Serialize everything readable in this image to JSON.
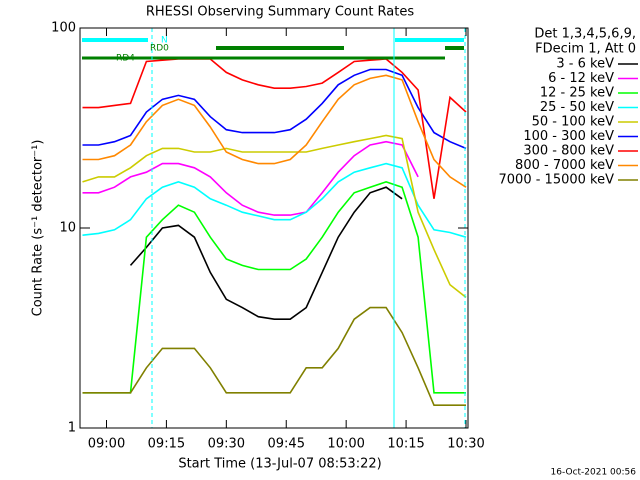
{
  "chart_data": {
    "type": "line",
    "title": "RHESSI Observing Summary Count Rates",
    "xlabel": "Start Time (13-Jul-07 08:53:22)",
    "ylabel": "Count Rate (s⁻¹ detector⁻¹)",
    "footer": "16-Oct-2021 00:56",
    "legend_header": [
      "Det 1,3,4,5,6,9,",
      "FDecim 1, Att 0"
    ],
    "annotations": [
      "N",
      "RD0",
      "RD4"
    ],
    "log_y": true,
    "xlim": [
      533.37,
      630.5
    ],
    "ylim": [
      1,
      100
    ],
    "xticks": [
      {
        "value": 540,
        "label": "09:00"
      },
      {
        "value": 555,
        "label": "09:15"
      },
      {
        "value": 570,
        "label": "09:30"
      },
      {
        "value": 585,
        "label": "09:45"
      },
      {
        "value": 600,
        "label": "10:00"
      },
      {
        "value": 615,
        "label": "10:15"
      },
      {
        "value": 630,
        "label": "10:30"
      }
    ],
    "yticks": [
      1,
      10,
      100
    ],
    "x": [
      534,
      538,
      542,
      546,
      550,
      554,
      558,
      562,
      566,
      570,
      574,
      578,
      582,
      586,
      590,
      594,
      598,
      602,
      606,
      610,
      614,
      618,
      622,
      626,
      630
    ],
    "series": [
      {
        "name": "3 - 6 keV",
        "color": "#000000",
        "values": [
          null,
          null,
          null,
          6.5,
          8,
          10,
          10.3,
          9,
          6,
          4.4,
          4,
          3.6,
          3.5,
          3.5,
          4,
          6,
          9,
          12,
          15,
          16,
          14,
          null,
          null,
          null,
          null
        ]
      },
      {
        "name": "6 - 12 keV",
        "color": "#ff00ff",
        "values": [
          15,
          15,
          16,
          18,
          19,
          21,
          21,
          20,
          18,
          15,
          13,
          12,
          11.6,
          11.6,
          12,
          15,
          19,
          23,
          26,
          27,
          26,
          18,
          null,
          null,
          null
        ]
      },
      {
        "name": "12 - 25 keV",
        "color": "#00ff00",
        "values": [
          1.5,
          1.5,
          1.5,
          1.5,
          9,
          11,
          13,
          12,
          9,
          7,
          6.5,
          6.2,
          6.2,
          6.2,
          7,
          9,
          12,
          15,
          16,
          17,
          16,
          9,
          1.5,
          1.5,
          1.5
        ]
      },
      {
        "name": "25 - 50 keV",
        "color": "#00ffff",
        "values": [
          9.2,
          9.4,
          9.8,
          11,
          14,
          16,
          17,
          16,
          14,
          13,
          12,
          11.5,
          11,
          11,
          12,
          14,
          17,
          19,
          20,
          21,
          20,
          13,
          9.8,
          9.5,
          9
        ]
      },
      {
        "name": "50 - 100 keV",
        "color": "#cccc00",
        "values": [
          17,
          18,
          18,
          20,
          23,
          25,
          25,
          24,
          24,
          25,
          24,
          24,
          24,
          24,
          24,
          25,
          26,
          27,
          28,
          29,
          28,
          12,
          7.8,
          5.2,
          4.5
        ]
      },
      {
        "name": "100 - 300 keV",
        "color": "#0000ff",
        "values": [
          26,
          26,
          27,
          29,
          38,
          44,
          46,
          44,
          36,
          31,
          30,
          30,
          30,
          31,
          35,
          42,
          52,
          58,
          62,
          62,
          58,
          40,
          30,
          27,
          25
        ]
      },
      {
        "name": "300 - 800 keV",
        "color": "#ff0000",
        "values": [
          40,
          40,
          41,
          42,
          68,
          69,
          70,
          70,
          70,
          60,
          55,
          52,
          50,
          50,
          51,
          53,
          60,
          68,
          69,
          70,
          60,
          49,
          14,
          45,
          38
        ]
      },
      {
        "name": "800 - 7000 keV",
        "color": "#ff8800",
        "values": [
          22,
          22,
          23,
          26,
          34,
          41,
          44,
          41,
          32,
          24,
          22,
          21,
          21,
          22,
          26,
          34,
          44,
          52,
          56,
          58,
          55,
          34,
          22,
          18,
          16
        ]
      },
      {
        "name": "7000 - 15000 keV",
        "color": "#808000",
        "values": [
          1.5,
          1.5,
          1.5,
          1.5,
          2,
          2.5,
          2.5,
          2.5,
          2,
          1.5,
          1.5,
          1.5,
          1.5,
          1.5,
          2,
          2,
          2.5,
          3.5,
          4,
          4,
          3,
          2,
          1.3,
          1.3,
          1.3
        ]
      }
    ]
  }
}
